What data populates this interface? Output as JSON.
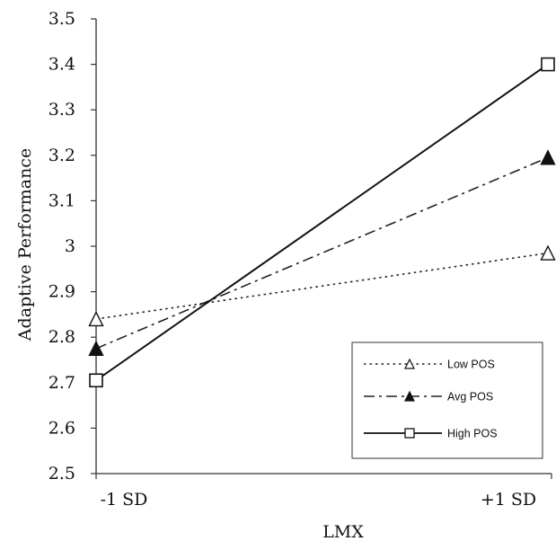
{
  "chart_data": {
    "type": "line",
    "title": "",
    "xlabel": "LMX",
    "ylabel": "Adaptive Performance",
    "categories": [
      "-1 SD",
      "+1 SD"
    ],
    "ylim": [
      2.5,
      3.5
    ],
    "yticks": [
      "2.5",
      "2.6",
      "2.7",
      "2.8",
      "2.9",
      "3",
      "3.1",
      "3.2",
      "3.3",
      "3.4",
      "3.5"
    ],
    "grid": false,
    "legend_position": "bottom-right",
    "series": [
      {
        "name": "Low POS",
        "values": [
          2.84,
          2.985
        ],
        "marker": "open-triangle",
        "line": "dotted",
        "color": "#222222"
      },
      {
        "name": "Avg POS",
        "values": [
          2.775,
          3.195
        ],
        "marker": "filled-triangle",
        "line": "dash-dot",
        "color": "#222222"
      },
      {
        "name": "High POS",
        "values": [
          2.705,
          3.4
        ],
        "marker": "open-square",
        "line": "solid",
        "color": "#111111"
      }
    ]
  }
}
